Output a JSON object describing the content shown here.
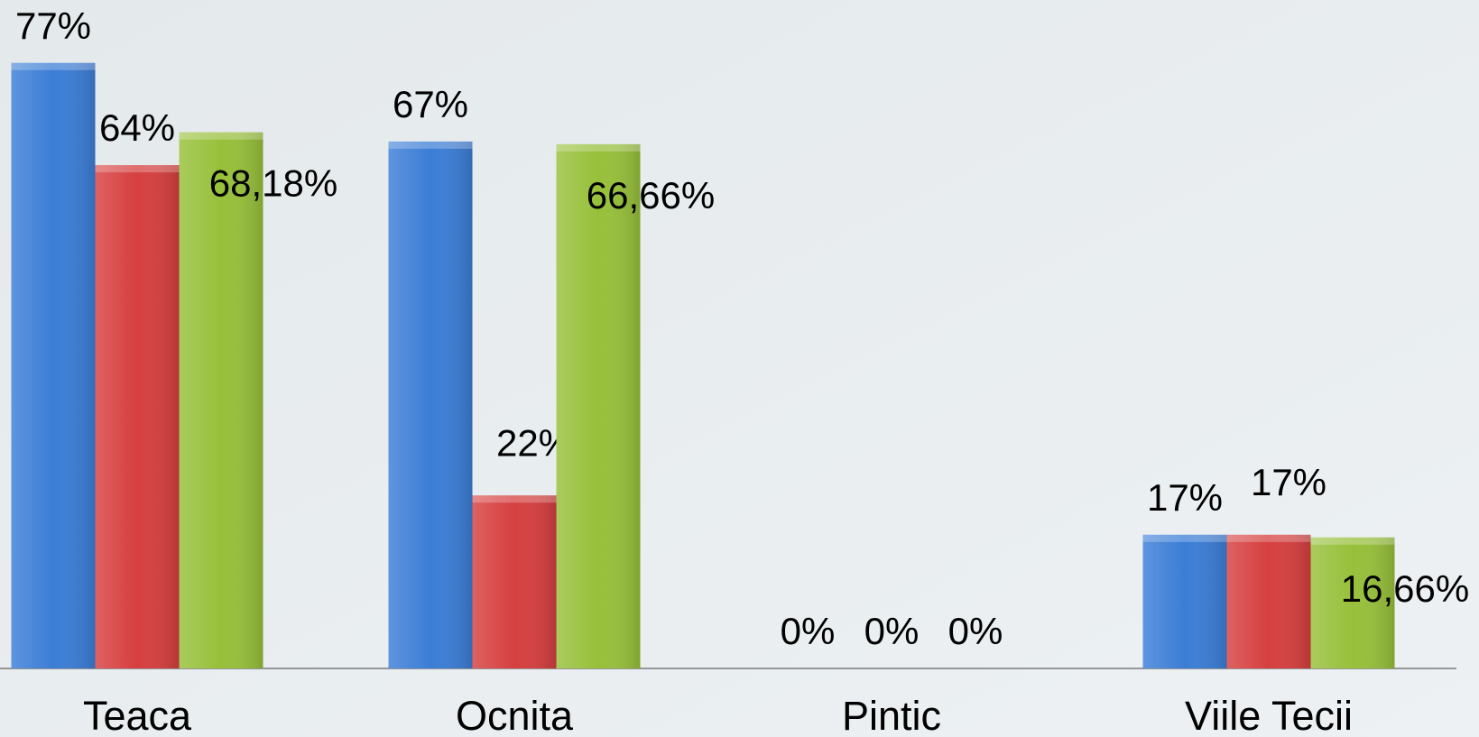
{
  "chart_data": {
    "type": "bar",
    "categories": [
      "Teaca",
      "Ocnita",
      "Pintic",
      "Viile Tecii"
    ],
    "series": [
      {
        "color": "#3b7dd6",
        "values": [
          77,
          67,
          0,
          17
        ],
        "value_labels": [
          "77%",
          "67%",
          "0%",
          "17%"
        ]
      },
      {
        "color": "#d63f3f",
        "values": [
          64,
          22,
          0,
          17
        ],
        "value_labels": [
          "64%",
          "22%",
          "0%",
          "17%"
        ]
      },
      {
        "color": "#97c03a",
        "values": [
          68.18,
          66.66,
          0,
          16.66
        ],
        "value_labels": [
          "68,18%",
          "66,66%",
          "0%",
          "16,66%"
        ]
      }
    ],
    "ylim": [
      0,
      85
    ]
  }
}
